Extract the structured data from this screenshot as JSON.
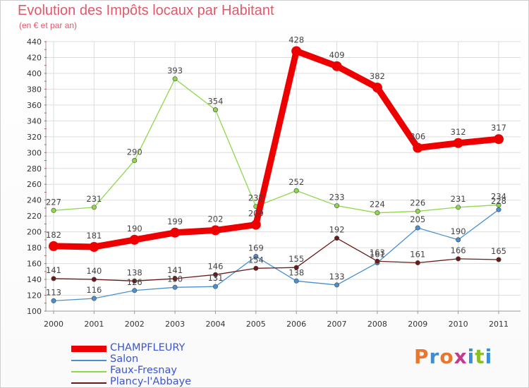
{
  "title": "Evolution des Impôts locaux par Habitant",
  "subtitle": "(en € et par an)",
  "logo": {
    "text": "Proxiti",
    "colors": [
      "#e8762c",
      "#3a8fd8",
      "#e8762c",
      "#c53a8e",
      "#3a8fd8",
      "#8cbf26",
      "#3a8fd8"
    ]
  },
  "chart_data": {
    "type": "line",
    "title": "Evolution des Impôts locaux par Habitant",
    "subtitle": "(en € et par an)",
    "xlabel": "",
    "ylabel": "",
    "ylim": [
      100,
      440
    ],
    "yticks": [
      100,
      120,
      140,
      160,
      180,
      200,
      220,
      240,
      260,
      280,
      300,
      320,
      340,
      360,
      380,
      400,
      420,
      440
    ],
    "grid": true,
    "legend_position": "bottom-left",
    "categories": [
      "2000",
      "2001",
      "2002",
      "2003",
      "2004",
      "2005",
      "2006",
      "2007",
      "2008",
      "2009",
      "2010",
      "2011"
    ],
    "series": [
      {
        "name": "CHAMPFLEURY",
        "color": "#ee0000",
        "thick": true,
        "values": [
          182,
          181,
          190,
          199,
          202,
          209,
          428,
          409,
          382,
          306,
          312,
          317
        ]
      },
      {
        "name": "Salon",
        "color": "#4a90d0",
        "thick": false,
        "values": [
          113,
          116,
          126,
          130,
          131,
          169,
          138,
          133,
          161,
          205,
          190,
          228
        ]
      },
      {
        "name": "Faux-Fresnay",
        "color": "#8dd94a",
        "thick": false,
        "values": [
          227,
          231,
          290,
          393,
          354,
          232,
          252,
          233,
          224,
          226,
          231,
          234
        ]
      },
      {
        "name": "Plancy-l'Abbaye",
        "color": "#6b1a1a",
        "thick": false,
        "values": [
          141,
          140,
          138,
          141,
          146,
          154,
          155,
          192,
          163,
          161,
          166,
          165
        ]
      }
    ],
    "point_labels": [
      [
        "182",
        "181",
        "190",
        "199",
        "202",
        "209",
        "428",
        "409",
        "382",
        "306",
        "312",
        "317"
      ],
      [
        "113",
        "116",
        "126",
        "130",
        "131",
        "169",
        "138",
        "133",
        "161",
        "205",
        "190",
        "228"
      ],
      [
        "227",
        "231",
        "290",
        "393",
        "354",
        "232",
        "252",
        "233",
        "224",
        "226",
        "231",
        "234"
      ],
      [
        "141",
        "140",
        "138",
        "141",
        "146",
        "154",
        "155",
        "192",
        "163",
        "161",
        "166",
        "165"
      ]
    ]
  }
}
